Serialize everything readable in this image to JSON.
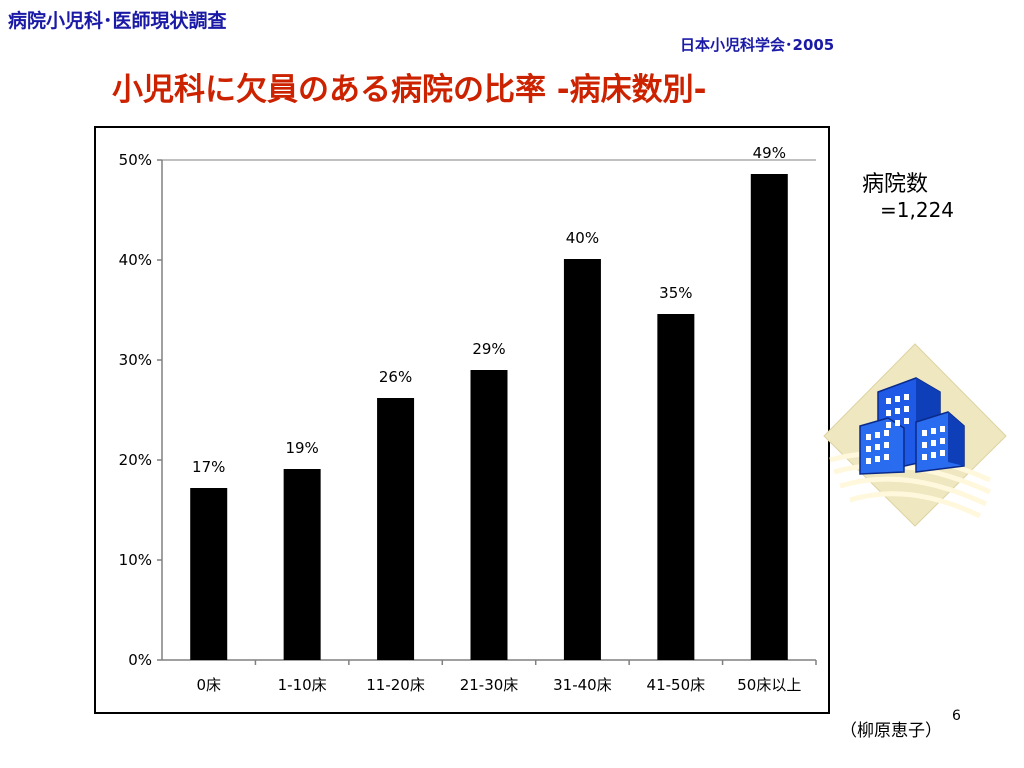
{
  "header": {
    "survey_title": "病院小児科･医師現状調査",
    "org_source": "日本小児科学会･2005"
  },
  "main": {
    "title": "小児科に欠員のある病院の比率 -病床数別-"
  },
  "side_note": {
    "label": "病院数",
    "value": "=1,224"
  },
  "footer": {
    "author": "（柳原恵子）",
    "page_number": "6"
  },
  "colors": {
    "bar": "#000000",
    "title": "#cc2200",
    "header": "#1a1aa6"
  },
  "clipart_icon": "office-buildings-icon",
  "chart_data": {
    "type": "bar",
    "categories": [
      "0床",
      "1-10床",
      "11-20床",
      "21-30床",
      "31-40床",
      "41-50床",
      "50床以上"
    ],
    "values": [
      17.2,
      19.1,
      26.2,
      29.0,
      40.1,
      34.6,
      48.6
    ],
    "data_labels": [
      "17%",
      "19%",
      "26%",
      "29%",
      "40%",
      "35%",
      "49%"
    ],
    "y_ticks": [
      0,
      10,
      20,
      30,
      40,
      50
    ],
    "y_tick_labels": [
      "0%",
      "10%",
      "20%",
      "30%",
      "40%",
      "50%"
    ],
    "ylim": [
      0,
      50
    ],
    "grid": false
  }
}
